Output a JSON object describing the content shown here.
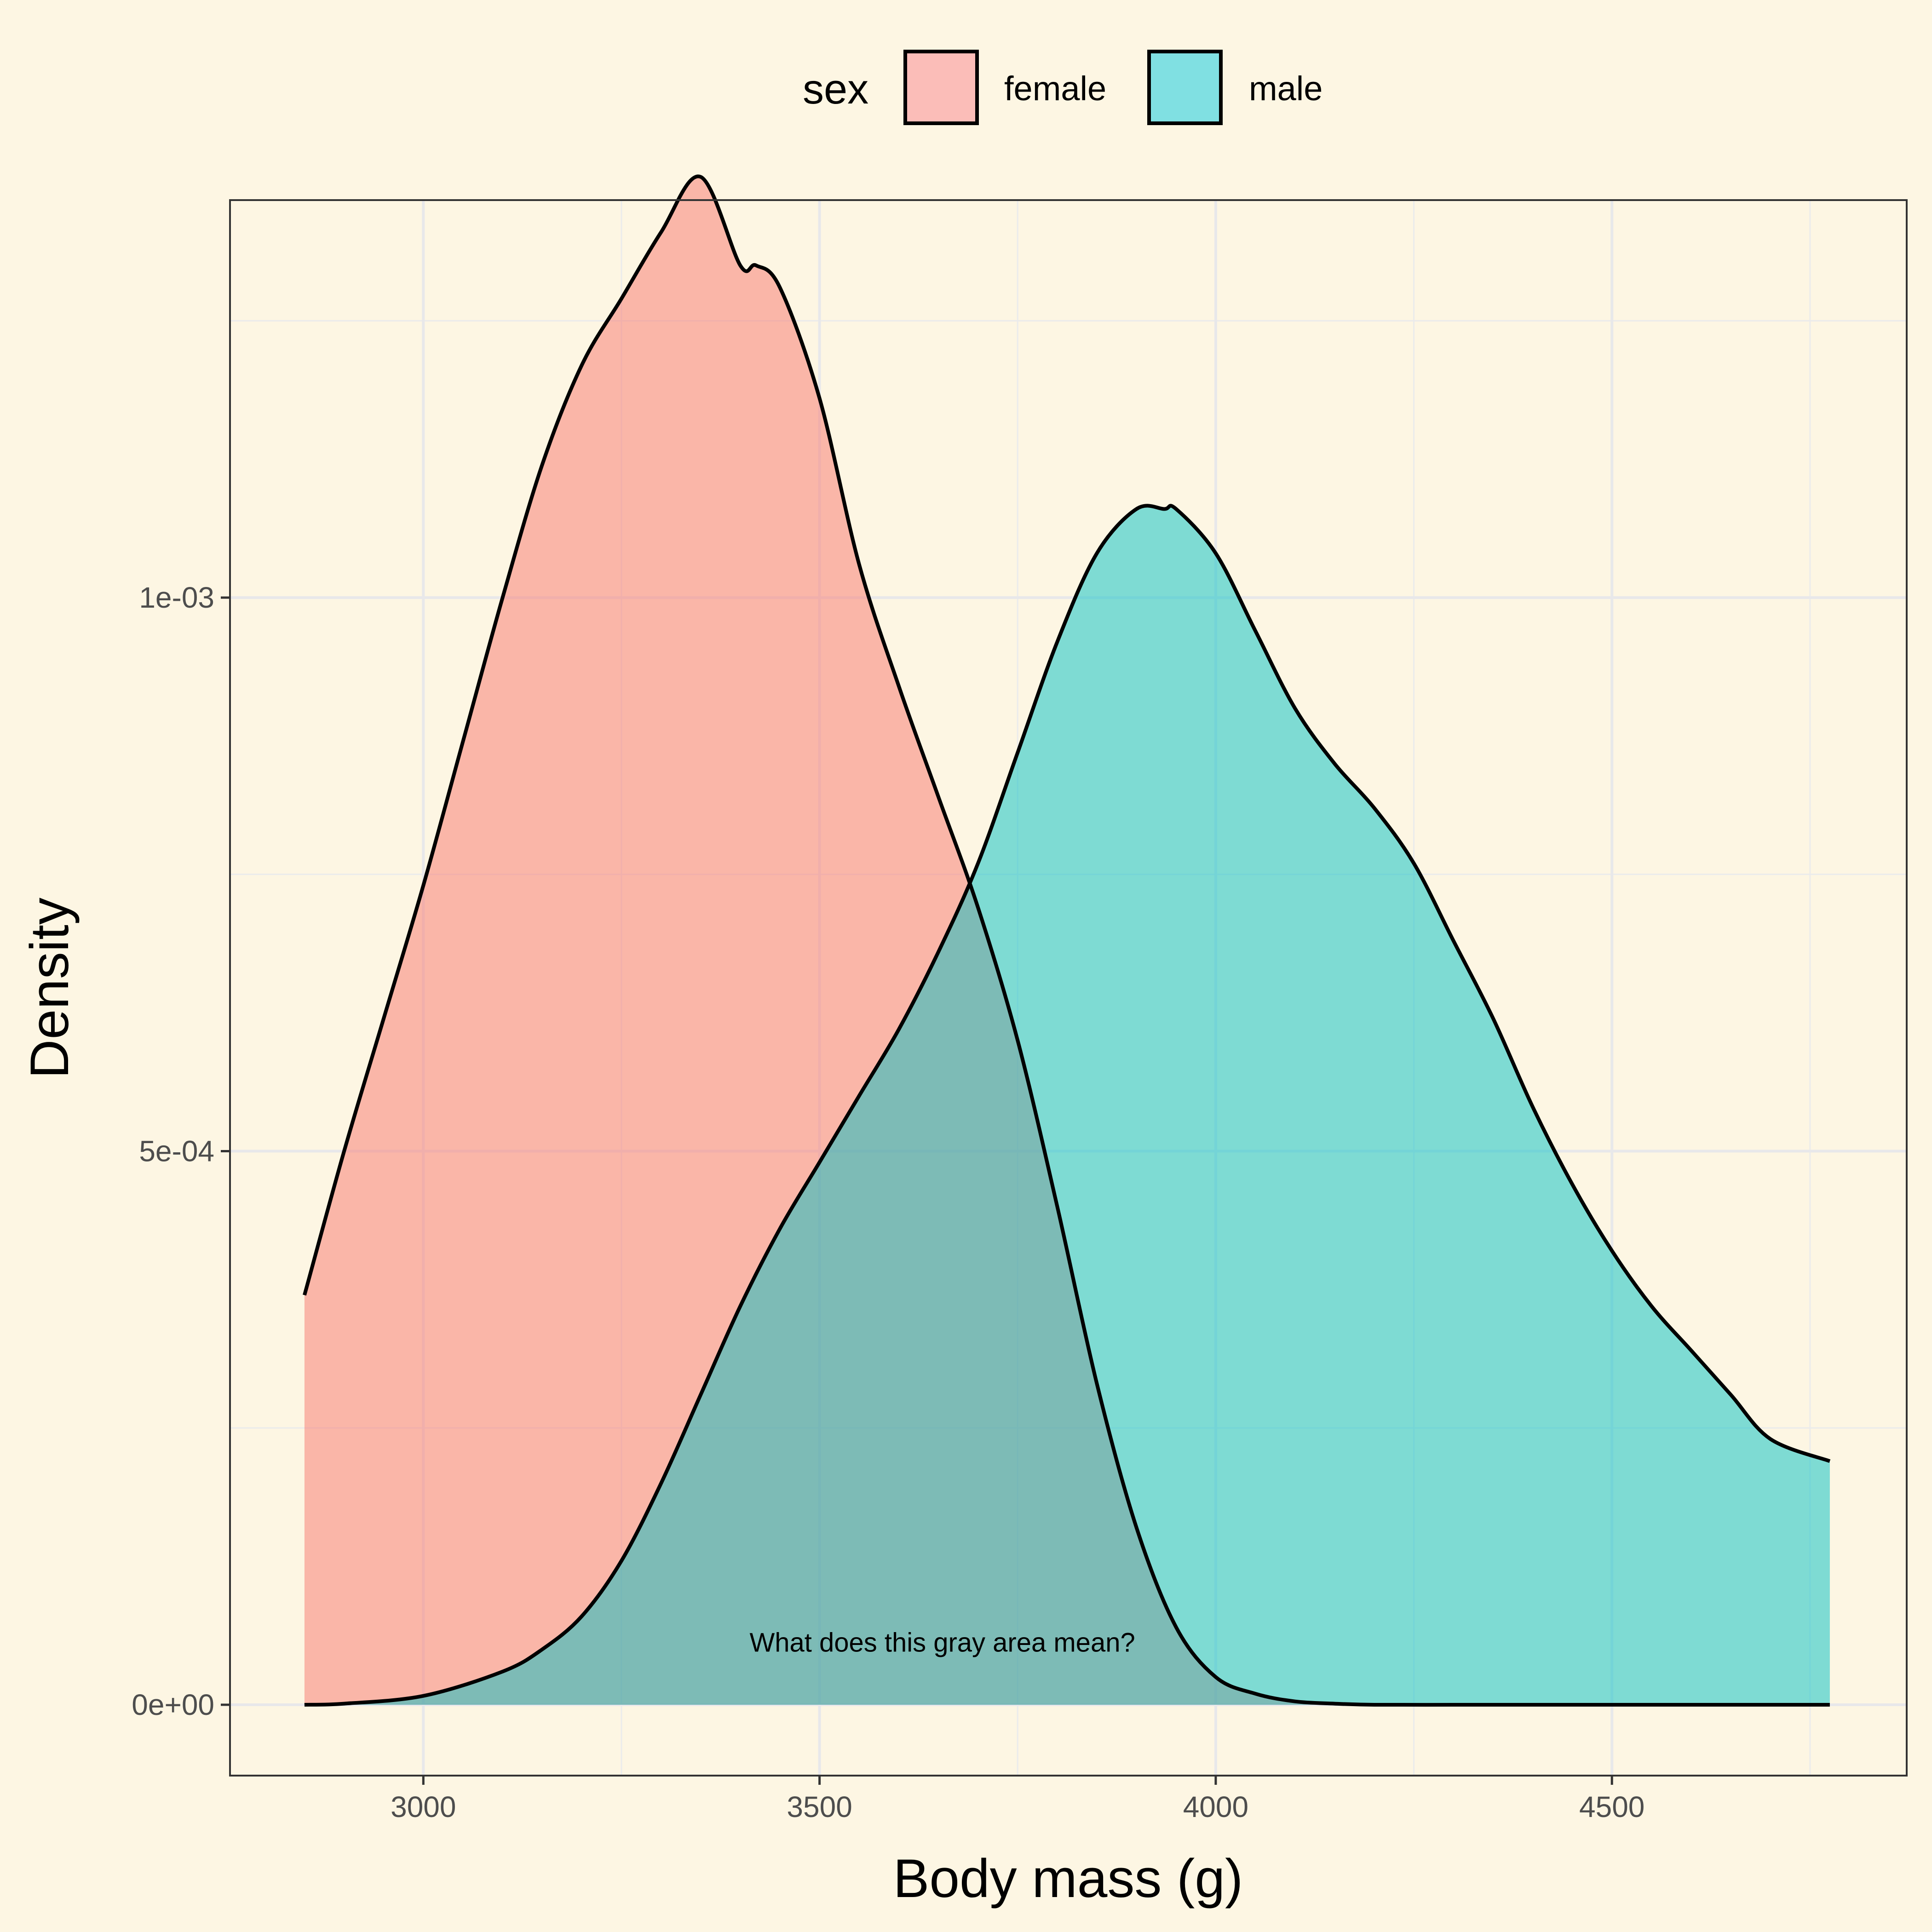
{
  "chart_data": {
    "type": "area",
    "xlabel": "Body mass (g)",
    "ylabel": "Density",
    "xlim": [
      2756,
      4872
    ],
    "ylim": [
      -6.4e-05,
      0.001359
    ],
    "x_ticks": [
      3000,
      3500,
      4000,
      4500
    ],
    "x_tick_labels": [
      "3000",
      "3500",
      "4000",
      "4500"
    ],
    "y_ticks": [
      0,
      0.0005,
      0.001
    ],
    "y_tick_labels": [
      "0e+00",
      "5e-04",
      "1e-03"
    ],
    "x_minor_ticks": [
      3250,
      3750,
      4250,
      4750
    ],
    "y_minor_ticks": [
      0.00025,
      0.00075,
      0.00125
    ],
    "grid": true,
    "legend": {
      "title": "sex",
      "position": "top",
      "entries": [
        {
          "label": "female",
          "color": "#f8766d"
        },
        {
          "label": "male",
          "color": "#00bfc4"
        }
      ]
    },
    "fill_alpha": 0.5,
    "annotation": {
      "text": "What does this gray area mean?",
      "x": 3655,
      "y": 4.8e-05
    },
    "series": [
      {
        "name": "female",
        "color": "#f8766d",
        "x": [
          2850,
          2900,
          2950,
          3000,
          3050,
          3100,
          3150,
          3200,
          3250,
          3300,
          3350,
          3400,
          3420,
          3450,
          3500,
          3550,
          3600,
          3650,
          3700,
          3750,
          3800,
          3850,
          3900,
          3950,
          4000,
          4050,
          4100,
          4150,
          4200,
          4300,
          4400,
          4500,
          4600,
          4700,
          4775
        ],
        "values": [
          0.00037,
          0.0005,
          0.00062,
          0.00074,
          0.00087,
          0.001,
          0.00112,
          0.00121,
          0.00127,
          0.00133,
          0.00138,
          0.0013,
          0.0013,
          0.00128,
          0.00118,
          0.00103,
          0.00092,
          0.00082,
          0.00072,
          0.0006,
          0.00045,
          0.00029,
          0.00016,
          7e-05,
          2.5e-05,
          1e-05,
          3e-06,
          1e-06,
          0,
          0,
          0,
          0,
          0,
          0,
          0
        ]
      },
      {
        "name": "male",
        "color": "#00bfc4",
        "x": [
          2850,
          2900,
          3000,
          3100,
          3150,
          3200,
          3250,
          3300,
          3350,
          3400,
          3450,
          3500,
          3550,
          3600,
          3650,
          3700,
          3750,
          3800,
          3850,
          3900,
          3935,
          3950,
          4000,
          4050,
          4100,
          4150,
          4200,
          4250,
          4300,
          4350,
          4400,
          4450,
          4500,
          4550,
          4600,
          4650,
          4700,
          4775
        ],
        "values": [
          0,
          1e-06,
          8e-06,
          3e-05,
          5e-05,
          8e-05,
          0.00013,
          0.0002,
          0.00028,
          0.00036,
          0.00043,
          0.00049,
          0.00055,
          0.00061,
          0.00068,
          0.00076,
          0.00086,
          0.00096,
          0.00104,
          0.00108,
          0.00108,
          0.00108,
          0.00104,
          0.00097,
          0.0009,
          0.00085,
          0.00081,
          0.00076,
          0.00069,
          0.00062,
          0.00054,
          0.00047,
          0.00041,
          0.00036,
          0.00032,
          0.00028,
          0.00024,
          0.00022
        ]
      }
    ]
  }
}
